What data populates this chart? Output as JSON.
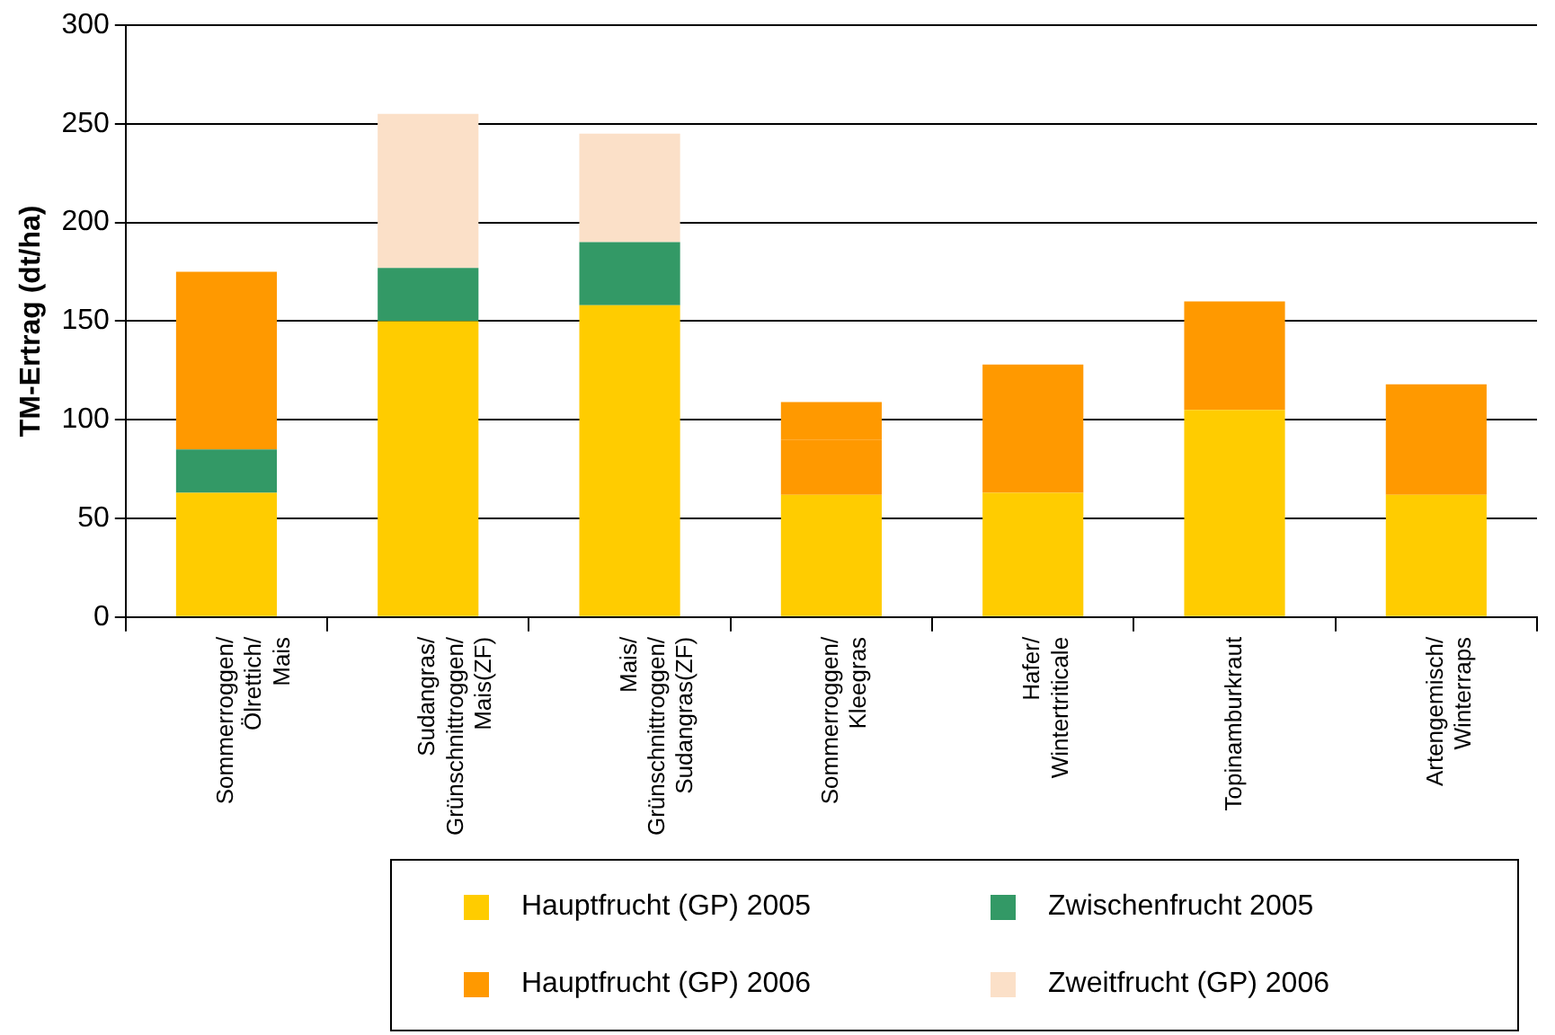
{
  "chart_data": {
    "type": "bar",
    "stacked": true,
    "ylabel": "TM-Ertrag (dt/ha)",
    "categories": [
      "Sommerroggen/ Ölrettich/ Mais",
      "Sudangras/ Grünschnittroggen/ Mais(ZF)",
      "Mais/ Grünschnittroggen/ Sudangras(ZF)",
      "Sommerroggen/ Kleegras",
      "Hafer/ Wintertriticale",
      "Topinamburkraut",
      "Artengemisch/ Winterraps"
    ],
    "series": [
      {
        "name": "Hauptfrucht (GP) 2005",
        "color": "#ffcc00",
        "values": [
          63,
          150,
          158,
          62,
          63,
          105,
          62
        ]
      },
      {
        "name": "Zwischenfrucht 2005",
        "color": "#339966",
        "colors": [
          "#339966",
          "#339966",
          "#339966",
          "#ff9900",
          "#339966",
          "#339966",
          "#339966"
        ],
        "values": [
          22,
          27,
          32,
          28,
          null,
          null,
          null
        ]
      },
      {
        "name": "Hauptfrucht (GP) 2006",
        "color": "#ff9900",
        "values": [
          90,
          null,
          null,
          19,
          65,
          55,
          56
        ]
      },
      {
        "name": "Zweitfrucht (GP) 2006",
        "color": "#fbe0c8",
        "values": [
          null,
          78,
          55,
          null,
          null,
          null,
          null
        ]
      }
    ],
    "ylim": [
      0,
      300
    ],
    "yticks": [
      0,
      50,
      100,
      150,
      200,
      250,
      300
    ],
    "grid": "y",
    "legend": "bottom"
  }
}
